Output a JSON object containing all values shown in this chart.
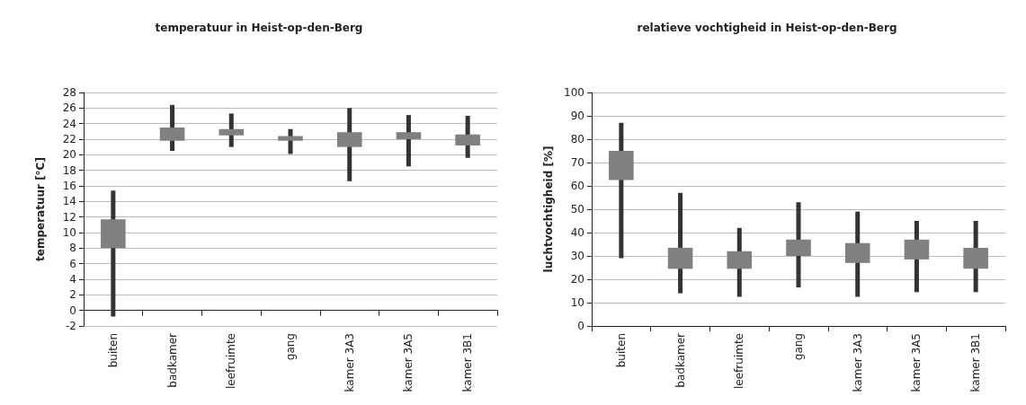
{
  "chart_data": [
    {
      "type": "candlestick",
      "title": "temperatuur in Heist-op-den-Berg",
      "ylabel": "temperatuur [°C]",
      "categories": [
        "buiten",
        "badkamer",
        "leefruimte",
        "gang",
        "kamer 3A3",
        "kamer 3A5",
        "kamer 3B1"
      ],
      "ohlc": [
        [
          8,
          15.4,
          -0.8,
          11.7
        ],
        [
          21.8,
          26.4,
          20.5,
          23.5
        ],
        [
          22.5,
          25.3,
          21,
          23.3
        ],
        [
          21.8,
          23.3,
          20.1,
          22.4
        ],
        [
          21,
          26,
          16.6,
          22.9
        ],
        [
          22,
          25.1,
          18.5,
          22.9
        ],
        [
          21.2,
          25,
          19.6,
          22.6
        ]
      ],
      "color": "#808080",
      "ylim": [
        -2,
        28
      ],
      "yticks": [
        -2,
        0,
        2,
        4,
        6,
        8,
        10,
        12,
        14,
        16,
        18,
        20,
        22,
        24,
        26,
        28
      ],
      "grid": "y"
    },
    {
      "type": "candlestick",
      "title": "relatieve vochtigheid in Heist-op-den-Berg",
      "ylabel": "luchtvochtigheid [%]",
      "categories": [
        "buiten",
        "badkamer",
        "leefruimte",
        "gang",
        "kamer 3A3",
        "kamer 3A5",
        "kamer 3B1"
      ],
      "ohlc": [
        [
          62.5,
          87,
          29,
          75
        ],
        [
          24.5,
          57,
          14,
          33.5
        ],
        [
          24.5,
          42,
          12.5,
          32
        ],
        [
          30,
          53,
          16.5,
          37
        ],
        [
          27,
          49,
          12.5,
          35.5
        ],
        [
          28.5,
          45,
          14.5,
          37
        ],
        [
          24.5,
          45,
          14.5,
          33.5
        ]
      ],
      "color": "#808080",
      "ylim": [
        0,
        100
      ],
      "yticks": [
        0,
        10,
        20,
        30,
        40,
        50,
        60,
        70,
        80,
        90,
        100
      ],
      "grid": "y"
    }
  ]
}
